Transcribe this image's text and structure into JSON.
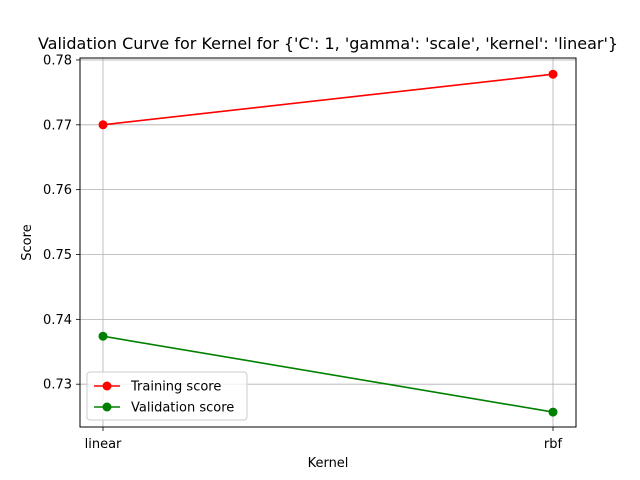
{
  "chart_data": {
    "type": "line",
    "title": "Validation Curve for Kernel for {'C': 1, 'gamma': 'scale', 'kernel': 'linear'}",
    "xlabel": "Kernel",
    "ylabel": "Score",
    "categories": [
      "linear",
      "rbf"
    ],
    "ylim": [
      0.7234,
      0.7803
    ],
    "yticks": [
      "0.73",
      "0.74",
      "0.75",
      "0.76",
      "0.77",
      "0.78"
    ],
    "grid": true,
    "legend_position": "lower-left",
    "series": [
      {
        "name": "Training score",
        "color": "#ff0000",
        "values": [
          0.77,
          0.7778
        ]
      },
      {
        "name": "Validation score",
        "color": "#008000",
        "values": [
          0.7374,
          0.7257
        ]
      }
    ]
  }
}
